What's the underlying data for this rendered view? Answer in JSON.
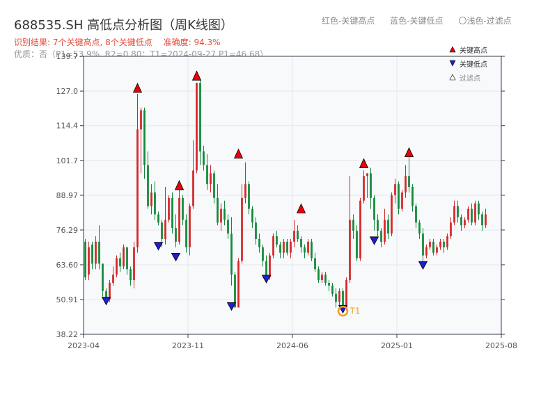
{
  "header": {
    "title": "688535.SH 高低点分析图（周K线图）",
    "legend_red": "红色-关键高点",
    "legend_blue": "蓝色-关键低点",
    "legend_light": "〇浅色-过滤点",
    "result_label": "识别结果: 7个关键高点, 8个关键低点",
    "accuracy_label": "准确度: 94.3%",
    "status_label": "优质：否（P1=53.9%, R2=0.80；T1=2024-09-27 P1=46.68）"
  },
  "colors": {
    "up": "#d62728",
    "down": "#13893b",
    "high_marker": "#e8000b",
    "low_marker": "#1f1fd0",
    "t1_marker": "#f0a020",
    "axis": "#33394a",
    "grid": "#e6e8ee",
    "plot_bg": "#f7f9fb"
  },
  "chart_data": {
    "type": "candlestick",
    "y_ticks": [
      38.22,
      50.91,
      63.6,
      76.29,
      88.97,
      101.7,
      114.4,
      127.0,
      139.7
    ],
    "y_tick_labels": [
      "38.22",
      "50.91",
      "63.60",
      "76.29",
      "88.97",
      "101.7",
      "114.4",
      "127.0",
      "139.7"
    ],
    "ylim": [
      38.22,
      139.7
    ],
    "x_ticks": [
      "2023-04",
      "2023-11",
      "2024-06",
      "2025-01",
      "2025-08"
    ],
    "x_tick_index": [
      0,
      30,
      60,
      90,
      120
    ],
    "xlim": [
      0,
      120
    ],
    "grid": true,
    "legend_position": "top-right",
    "legend": {
      "high": "关键高点",
      "low": "关键低点",
      "filtered": "过滤点"
    },
    "candles": [
      [
        72,
        59,
        73,
        58
      ],
      [
        60,
        70,
        72,
        58
      ],
      [
        71,
        64,
        72,
        62
      ],
      [
        64,
        72,
        74,
        62
      ],
      [
        72,
        64,
        78,
        62
      ],
      [
        64,
        54,
        64,
        52
      ],
      [
        54,
        51,
        55,
        50
      ],
      [
        51,
        57,
        58,
        50
      ],
      [
        57,
        60,
        63,
        56
      ],
      [
        60,
        66,
        67,
        59
      ],
      [
        66,
        63,
        68,
        61
      ],
      [
        63,
        70,
        71,
        62
      ],
      [
        70,
        62,
        70,
        60
      ],
      [
        62,
        58,
        63,
        56
      ],
      [
        58,
        70,
        72,
        55
      ],
      [
        70,
        113,
        126,
        68
      ],
      [
        113,
        120,
        121,
        97
      ],
      [
        120,
        100,
        121,
        95
      ],
      [
        100,
        85,
        105,
        84
      ],
      [
        85,
        90,
        93,
        82
      ],
      [
        90,
        82,
        94,
        80
      ],
      [
        82,
        79,
        83,
        78
      ],
      [
        79,
        73,
        80,
        70
      ],
      [
        73,
        80,
        92,
        71
      ],
      [
        80,
        88,
        89,
        79
      ],
      [
        88,
        77,
        90,
        75
      ],
      [
        77,
        72,
        82,
        70
      ],
      [
        72,
        88,
        91,
        71
      ],
      [
        88,
        80,
        89,
        78
      ],
      [
        80,
        70,
        82,
        68
      ],
      [
        70,
        85,
        86,
        67
      ],
      [
        85,
        98,
        109,
        84
      ],
      [
        98,
        130,
        130,
        97
      ],
      [
        130,
        105,
        131,
        100
      ],
      [
        105,
        100,
        107,
        98
      ],
      [
        100,
        93,
        104,
        91
      ],
      [
        93,
        97,
        100,
        90
      ],
      [
        97,
        88,
        98,
        86
      ],
      [
        88,
        79,
        93,
        78
      ],
      [
        79,
        84,
        86,
        76
      ],
      [
        84,
        80,
        87,
        78
      ],
      [
        80,
        75,
        82,
        73
      ],
      [
        75,
        60,
        81,
        56
      ],
      [
        60,
        48,
        61,
        48
      ],
      [
        48,
        65,
        66,
        48
      ],
      [
        65,
        88,
        93,
        64
      ],
      [
        88,
        93,
        101,
        86
      ],
      [
        93,
        84,
        94,
        82
      ],
      [
        84,
        79,
        85,
        77
      ],
      [
        79,
        73,
        81,
        71
      ],
      [
        73,
        70,
        75,
        68
      ],
      [
        70,
        65,
        71,
        63
      ],
      [
        65,
        59,
        67,
        58
      ],
      [
        59,
        67,
        68,
        58
      ],
      [
        67,
        74,
        75,
        66
      ],
      [
        74,
        71,
        76,
        70
      ],
      [
        71,
        68,
        72,
        66
      ],
      [
        68,
        72,
        73,
        66
      ],
      [
        72,
        68,
        73,
        67
      ],
      [
        68,
        72,
        73,
        66
      ],
      [
        72,
        76,
        80,
        70
      ],
      [
        76,
        73,
        78,
        72
      ],
      [
        73,
        70,
        74,
        68
      ],
      [
        70,
        68,
        71,
        66
      ],
      [
        68,
        72,
        73,
        67
      ],
      [
        72,
        66,
        73,
        65
      ],
      [
        66,
        62,
        68,
        61
      ],
      [
        62,
        58,
        63,
        57
      ],
      [
        58,
        60,
        61,
        57
      ],
      [
        60,
        57,
        61,
        56
      ],
      [
        57,
        56,
        58,
        54
      ],
      [
        56,
        53,
        57,
        52
      ],
      [
        53,
        50,
        55,
        48
      ],
      [
        50,
        54,
        55,
        48
      ],
      [
        54,
        48,
        55,
        47
      ],
      [
        48,
        58,
        59,
        47
      ],
      [
        58,
        80,
        96,
        57
      ],
      [
        80,
        76,
        82,
        73
      ],
      [
        76,
        66,
        78,
        65
      ],
      [
        66,
        87,
        88,
        65
      ],
      [
        87,
        96,
        98,
        86
      ],
      [
        96,
        97,
        97,
        88
      ],
      [
        97,
        88,
        99,
        84
      ],
      [
        88,
        80,
        89,
        76
      ],
      [
        80,
        76,
        82,
        74
      ],
      [
        76,
        72,
        77,
        70
      ],
      [
        72,
        80,
        84,
        71
      ],
      [
        80,
        75,
        82,
        73
      ],
      [
        75,
        89,
        90,
        74
      ],
      [
        89,
        93,
        95,
        86
      ],
      [
        93,
        84,
        94,
        82
      ],
      [
        84,
        90,
        91,
        83
      ],
      [
        90,
        96,
        100,
        88
      ],
      [
        96,
        92,
        106,
        90
      ],
      [
        92,
        85,
        93,
        83
      ],
      [
        85,
        79,
        86,
        77
      ],
      [
        79,
        75,
        80,
        73
      ],
      [
        75,
        67,
        77,
        65
      ],
      [
        67,
        70,
        71,
        66
      ],
      [
        70,
        72,
        73,
        69
      ],
      [
        72,
        68,
        73,
        67
      ],
      [
        68,
        70,
        71,
        67
      ],
      [
        70,
        72,
        73,
        69
      ],
      [
        72,
        70,
        73,
        68
      ],
      [
        70,
        74,
        75,
        69
      ],
      [
        74,
        79,
        81,
        73
      ],
      [
        79,
        85,
        87,
        78
      ],
      [
        85,
        81,
        87,
        79
      ],
      [
        81,
        78,
        82,
        76
      ],
      [
        78,
        80,
        81,
        77
      ],
      [
        80,
        84,
        85,
        79
      ],
      [
        84,
        79,
        86,
        78
      ],
      [
        79,
        86,
        87,
        78
      ],
      [
        86,
        82,
        87,
        80
      ],
      [
        82,
        78,
        83,
        76
      ],
      [
        78,
        82,
        84,
        77
      ]
    ],
    "key_highs": [
      {
        "i": 15,
        "price": 126.5
      },
      {
        "i": 32,
        "price": 131.0
      },
      {
        "i": 27,
        "price": 91.0
      },
      {
        "i": 44,
        "price": 102.5
      },
      {
        "i": 62,
        "price": 82.5
      },
      {
        "i": 80,
        "price": 99.0
      },
      {
        "i": 93,
        "price": 103.0
      }
    ],
    "key_lows": [
      {
        "i": 6,
        "price": 49.0
      },
      {
        "i": 21,
        "price": 69.0
      },
      {
        "i": 26,
        "price": 65.0
      },
      {
        "i": 42,
        "price": 47.0
      },
      {
        "i": 52,
        "price": 57.0
      },
      {
        "i": 74,
        "price": 46.0
      },
      {
        "i": 83,
        "price": 71.0
      },
      {
        "i": 97,
        "price": 62.0
      }
    ],
    "t1": {
      "i": 74,
      "price": 46.68,
      "label": "T1"
    }
  }
}
